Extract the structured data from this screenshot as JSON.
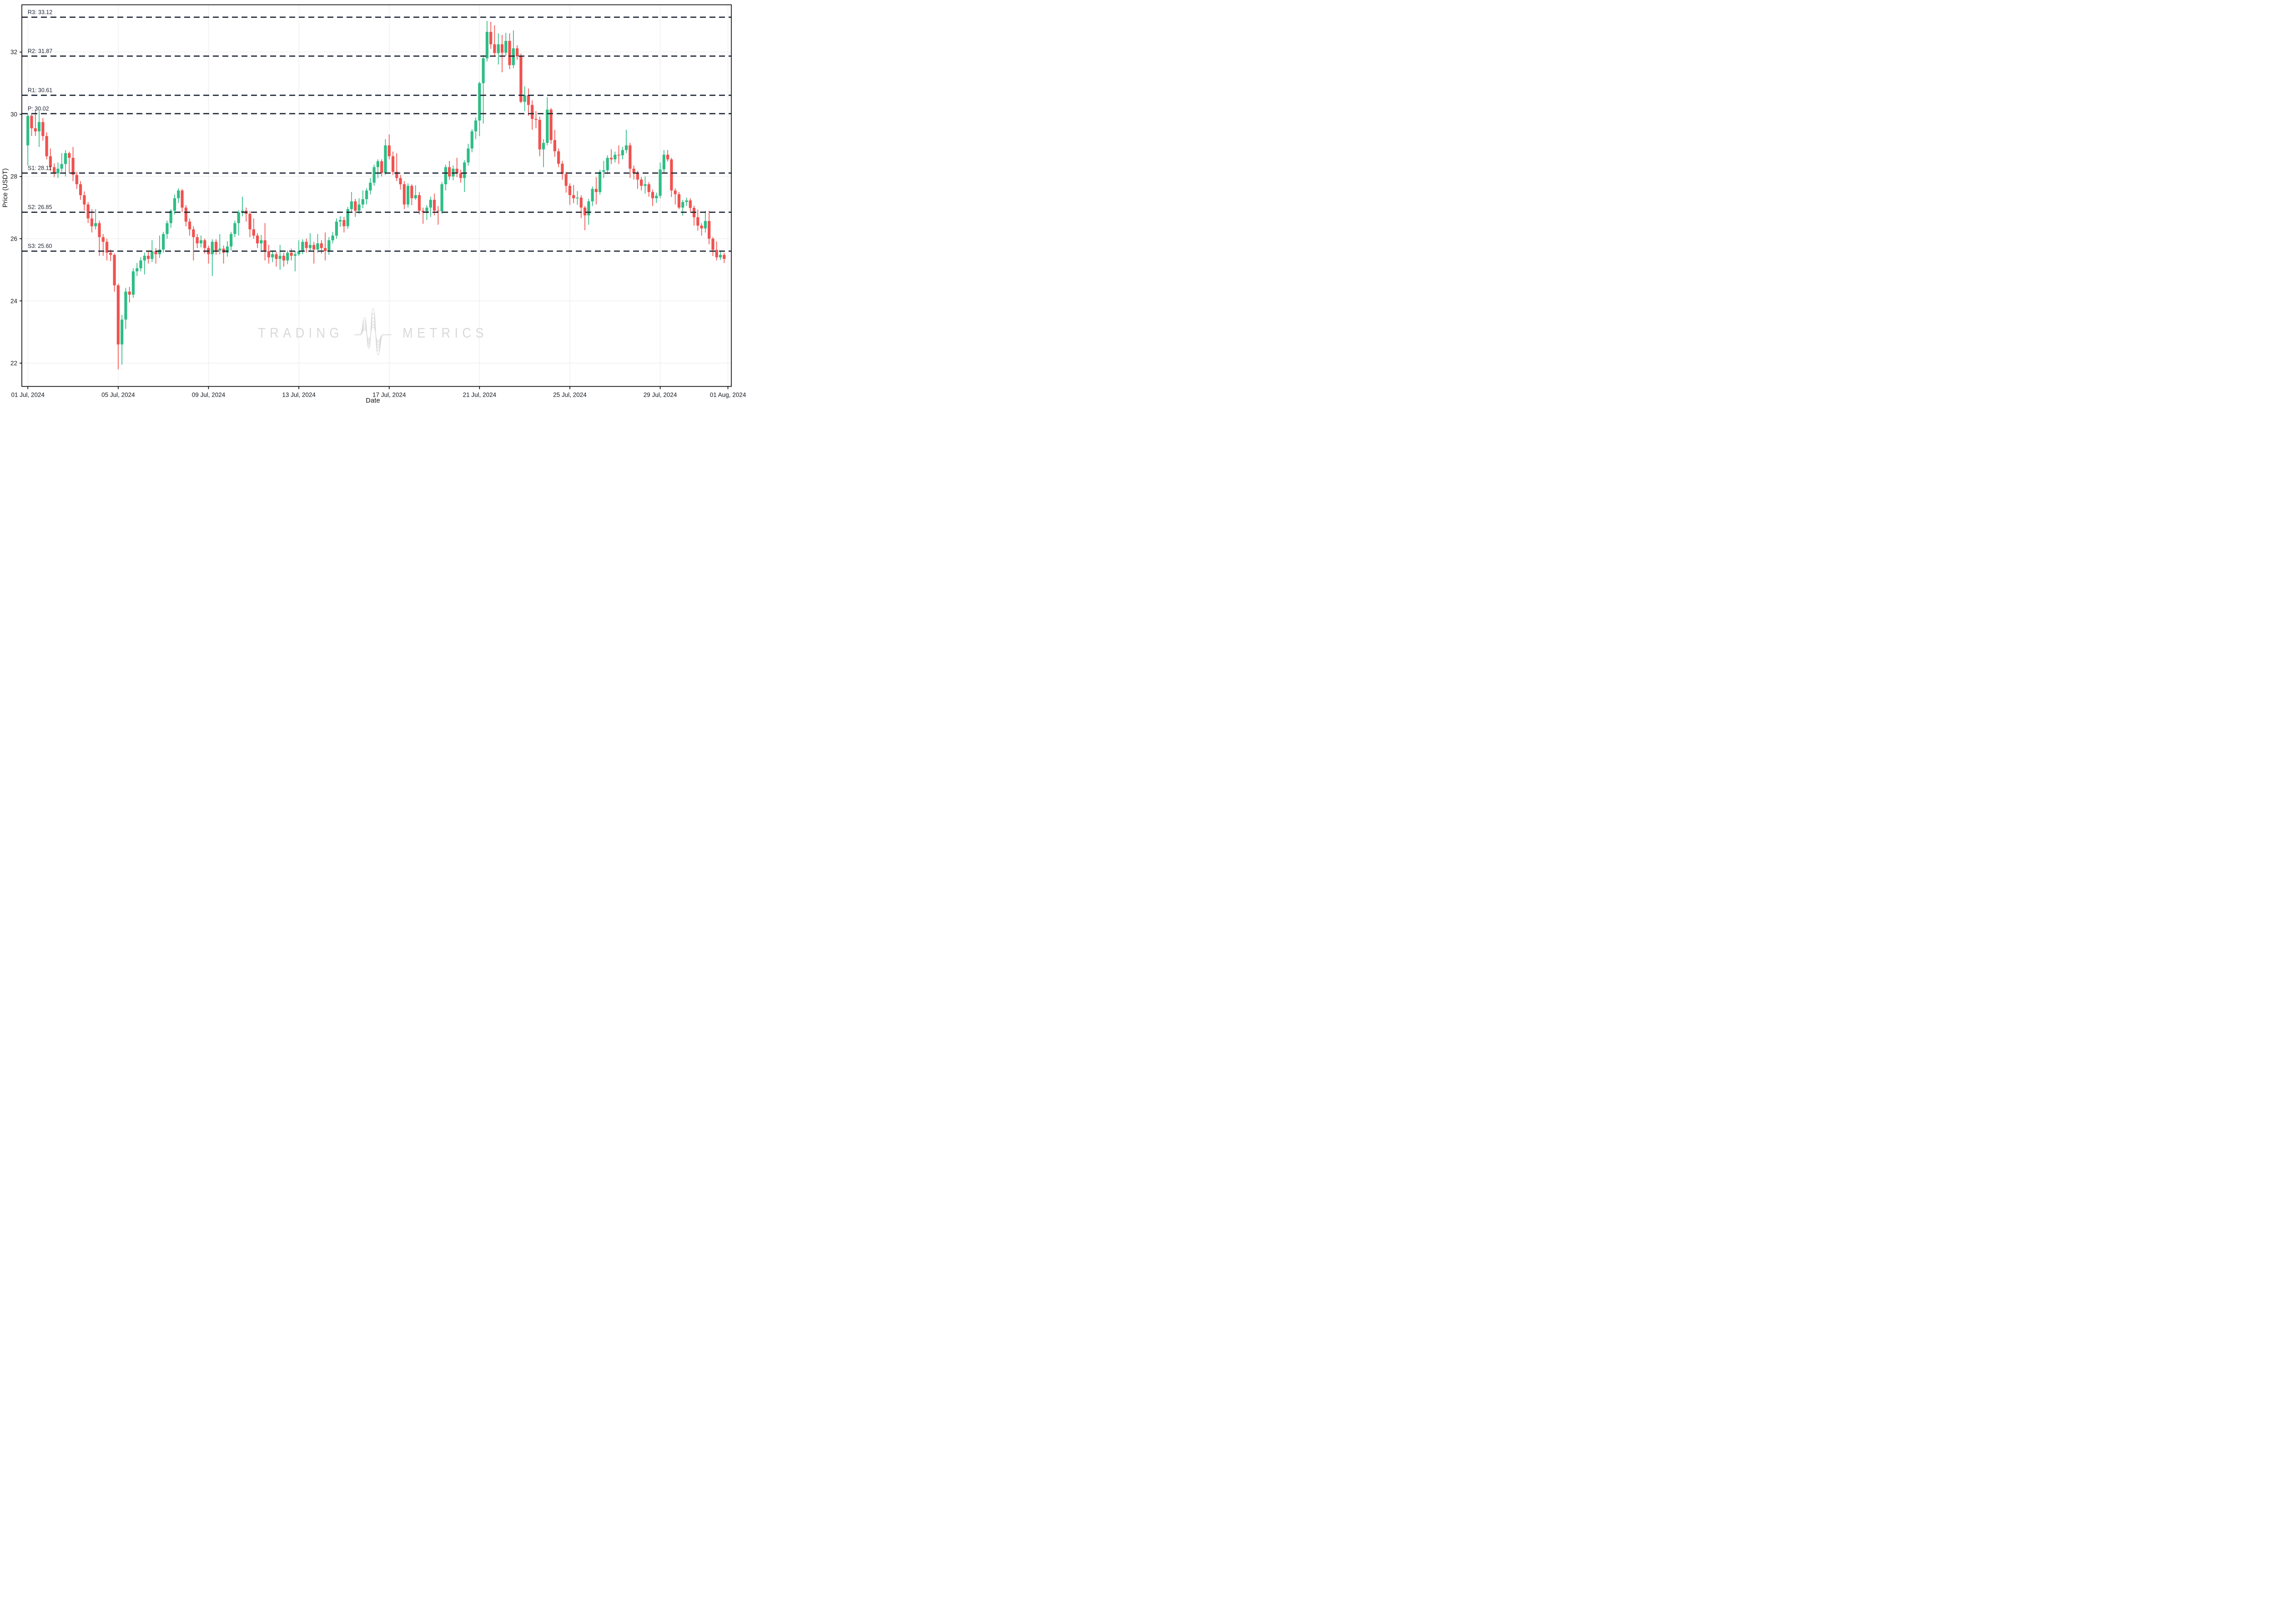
{
  "chart_data": {
    "type": "candlestick",
    "title": "",
    "xlabel": "Date",
    "ylabel": "Price (USDT)",
    "timeframe": "4h",
    "legend": false,
    "grid": true,
    "ylim": [
      21.25,
      33.52
    ],
    "y_ticks": [
      22,
      24,
      26,
      28,
      30,
      32
    ],
    "x_tick_labels": [
      "01 Jul, 2024",
      "05 Jul, 2024",
      "09 Jul, 2024",
      "13 Jul, 2024",
      "17 Jul, 2024",
      "21 Jul, 2024",
      "25 Jul, 2024",
      "29 Jul, 2024",
      "01 Aug, 2024"
    ],
    "x_tick_indices": [
      0,
      24,
      48,
      72,
      96,
      120,
      144,
      168,
      186
    ],
    "pivot_levels": [
      {
        "id": "r3",
        "label": "R3: 33.12",
        "value": 33.12
      },
      {
        "id": "r2",
        "label": "R2: 31.87",
        "value": 31.87
      },
      {
        "id": "r1",
        "label": "R1: 30.61",
        "value": 30.61
      },
      {
        "id": "p",
        "label": "P: 30.02",
        "value": 30.02
      },
      {
        "id": "s1",
        "label": "S1: 28.11",
        "value": 28.11
      },
      {
        "id": "s2",
        "label": "S2: 26.85",
        "value": 26.85
      },
      {
        "id": "s3",
        "label": "S3: 25.60",
        "value": 25.6
      }
    ],
    "watermark": {
      "left": "TRADING",
      "right": "METRICS",
      "icon": "pulse-waveform-icon"
    },
    "colors": {
      "up": "#2EBD85",
      "down": "#F0524F",
      "pivot_line": "#1C2433",
      "pivot_text": "#1C2433",
      "grid": "#F0F0F0",
      "spine": "#000000",
      "tick_text": "#15181E",
      "watermark": "#D9D9D9",
      "background": "#FFFFFF"
    },
    "candles": [
      [
        29.0,
        30.0,
        28.35,
        29.95
      ],
      [
        29.95,
        30.0,
        29.3,
        29.55
      ],
      [
        29.55,
        30.15,
        29.3,
        29.45
      ],
      [
        29.45,
        30.1,
        28.95,
        29.75
      ],
      [
        29.75,
        29.88,
        29.15,
        29.3
      ],
      [
        29.3,
        29.42,
        28.55,
        28.65
      ],
      [
        28.65,
        28.9,
        28.18,
        28.3
      ],
      [
        28.3,
        28.42,
        27.98,
        28.1
      ],
      [
        28.1,
        28.45,
        27.95,
        28.25
      ],
      [
        28.25,
        28.75,
        28.15,
        28.4
      ],
      [
        28.4,
        28.85,
        28.0,
        28.75
      ],
      [
        28.75,
        28.8,
        28.1,
        28.6
      ],
      [
        28.6,
        28.95,
        27.85,
        28.05
      ],
      [
        28.05,
        28.15,
        27.6,
        27.75
      ],
      [
        27.75,
        27.85,
        27.25,
        27.4
      ],
      [
        27.4,
        27.52,
        26.9,
        27.1
      ],
      [
        27.1,
        27.18,
        26.5,
        26.65
      ],
      [
        26.65,
        26.95,
        26.2,
        26.4
      ],
      [
        26.4,
        26.95,
        26.3,
        26.5
      ],
      [
        26.5,
        26.58,
        25.45,
        26.05
      ],
      [
        26.05,
        26.15,
        25.45,
        25.9
      ],
      [
        25.9,
        26.0,
        25.3,
        25.55
      ],
      [
        25.55,
        25.65,
        25.28,
        25.48
      ],
      [
        25.48,
        25.52,
        24.3,
        24.5
      ],
      [
        24.5,
        24.55,
        21.8,
        22.6
      ],
      [
        22.6,
        23.55,
        21.95,
        23.4
      ],
      [
        23.4,
        24.42,
        23.1,
        24.3
      ],
      [
        24.3,
        24.45,
        23.95,
        24.2
      ],
      [
        24.2,
        25.05,
        24.1,
        24.95
      ],
      [
        24.95,
        25.22,
        24.8,
        25.05
      ],
      [
        25.05,
        25.4,
        24.95,
        25.3
      ],
      [
        25.3,
        25.55,
        24.85,
        25.45
      ],
      [
        25.45,
        25.6,
        25.2,
        25.35
      ],
      [
        25.35,
        25.95,
        25.25,
        25.6
      ],
      [
        25.6,
        25.7,
        25.2,
        25.5
      ],
      [
        25.5,
        26.1,
        25.38,
        25.65
      ],
      [
        25.65,
        26.22,
        25.55,
        26.15
      ],
      [
        26.15,
        26.58,
        26.0,
        26.5
      ],
      [
        26.5,
        26.95,
        26.35,
        26.9
      ],
      [
        26.9,
        27.42,
        26.78,
        27.3
      ],
      [
        27.3,
        27.62,
        27.15,
        27.55
      ],
      [
        27.55,
        27.6,
        26.85,
        27.0
      ],
      [
        27.0,
        27.08,
        26.4,
        26.55
      ],
      [
        26.55,
        26.65,
        26.1,
        26.3
      ],
      [
        26.3,
        26.4,
        25.3,
        26.05
      ],
      [
        26.05,
        26.15,
        25.7,
        25.85
      ],
      [
        25.85,
        26.1,
        25.72,
        25.95
      ],
      [
        25.95,
        26.0,
        25.52,
        25.7
      ],
      [
        25.7,
        25.78,
        25.2,
        25.5
      ],
      [
        25.5,
        25.98,
        24.8,
        25.9
      ],
      [
        25.9,
        25.98,
        25.48,
        25.62
      ],
      [
        25.62,
        26.15,
        25.5,
        25.68
      ],
      [
        25.68,
        25.78,
        25.2,
        25.55
      ],
      [
        25.55,
        25.92,
        25.42,
        25.75
      ],
      [
        25.75,
        26.22,
        25.62,
        26.15
      ],
      [
        26.15,
        26.58,
        26.05,
        26.5
      ],
      [
        26.5,
        26.92,
        26.1,
        26.85
      ],
      [
        26.85,
        27.35,
        26.72,
        26.9
      ],
      [
        26.9,
        27.0,
        26.55,
        26.8
      ],
      [
        26.8,
        26.88,
        26.05,
        26.3
      ],
      [
        26.3,
        26.65,
        26.0,
        26.1
      ],
      [
        26.1,
        26.18,
        25.7,
        25.85
      ],
      [
        25.85,
        26.12,
        25.6,
        25.95
      ],
      [
        25.95,
        26.5,
        25.3,
        25.6
      ],
      [
        25.6,
        25.8,
        25.2,
        25.4
      ],
      [
        25.4,
        25.62,
        25.25,
        25.5
      ],
      [
        25.5,
        25.58,
        25.1,
        25.35
      ],
      [
        25.35,
        25.8,
        25.0,
        25.45
      ],
      [
        25.45,
        25.55,
        25.1,
        25.3
      ],
      [
        25.3,
        25.62,
        25.18,
        25.55
      ],
      [
        25.55,
        25.68,
        25.3,
        25.45
      ],
      [
        25.45,
        25.6,
        24.95,
        25.5
      ],
      [
        25.5,
        25.95,
        25.45,
        25.6
      ],
      [
        25.6,
        25.98,
        25.5,
        25.9
      ],
      [
        25.9,
        26.0,
        25.55,
        25.7
      ],
      [
        25.7,
        26.18,
        25.6,
        25.8
      ],
      [
        25.8,
        25.9,
        25.2,
        25.65
      ],
      [
        25.65,
        26.15,
        25.55,
        25.85
      ],
      [
        25.85,
        25.95,
        25.52,
        25.7
      ],
      [
        25.7,
        26.2,
        25.3,
        25.6
      ],
      [
        25.6,
        26.05,
        25.48,
        25.95
      ],
      [
        25.95,
        26.22,
        25.85,
        26.1
      ],
      [
        26.1,
        26.65,
        26.0,
        26.55
      ],
      [
        26.55,
        26.72,
        26.38,
        26.6
      ],
      [
        26.6,
        26.7,
        26.2,
        26.4
      ],
      [
        26.4,
        27.02,
        26.32,
        26.95
      ],
      [
        26.95,
        27.5,
        26.85,
        27.2
      ],
      [
        27.2,
        27.28,
        26.7,
        26.9
      ],
      [
        26.9,
        27.3,
        26.8,
        27.1
      ],
      [
        27.1,
        27.55,
        26.98,
        27.27
      ],
      [
        27.27,
        27.62,
        27.1,
        27.55
      ],
      [
        27.55,
        27.95,
        27.42,
        27.8
      ],
      [
        27.8,
        28.38,
        27.7,
        28.3
      ],
      [
        28.3,
        28.55,
        27.95,
        28.49
      ],
      [
        28.49,
        28.55,
        28.0,
        28.11
      ],
      [
        28.11,
        29.2,
        28.05,
        29.0
      ],
      [
        29.0,
        29.35,
        28.55,
        28.65
      ],
      [
        28.65,
        28.8,
        28.05,
        28.15
      ],
      [
        28.15,
        28.75,
        27.85,
        27.95
      ],
      [
        27.95,
        28.05,
        27.58,
        27.75
      ],
      [
        27.75,
        27.85,
        26.95,
        27.1
      ],
      [
        27.1,
        27.78,
        27.0,
        27.7
      ],
      [
        27.7,
        27.75,
        27.08,
        27.3
      ],
      [
        27.3,
        27.72,
        27.25,
        27.4
      ],
      [
        27.4,
        27.5,
        26.78,
        26.9
      ],
      [
        26.9,
        27.0,
        26.48,
        26.85
      ],
      [
        26.85,
        27.08,
        26.6,
        27.0
      ],
      [
        27.0,
        27.35,
        26.7,
        27.25
      ],
      [
        27.25,
        27.45,
        26.75,
        26.9
      ],
      [
        26.9,
        27.05,
        26.45,
        26.88
      ],
      [
        26.88,
        27.82,
        26.8,
        27.75
      ],
      [
        27.75,
        28.38,
        27.55,
        28.3
      ],
      [
        28.3,
        28.5,
        27.9,
        28.0
      ],
      [
        28.0,
        28.35,
        27.88,
        28.25
      ],
      [
        28.25,
        28.6,
        27.98,
        28.1
      ],
      [
        28.1,
        28.22,
        27.8,
        27.95
      ],
      [
        27.95,
        28.52,
        27.5,
        28.45
      ],
      [
        28.45,
        29.05,
        28.35,
        28.9
      ],
      [
        28.9,
        29.52,
        28.78,
        29.45
      ],
      [
        29.45,
        29.9,
        29.2,
        29.8
      ],
      [
        29.8,
        31.05,
        29.3,
        31.0
      ],
      [
        31.0,
        31.9,
        29.7,
        31.8
      ],
      [
        31.8,
        33.0,
        31.7,
        32.65
      ],
      [
        32.65,
        32.97,
        32.1,
        32.25
      ],
      [
        32.25,
        32.86,
        31.85,
        31.97
      ],
      [
        31.97,
        32.6,
        31.6,
        32.25
      ],
      [
        32.25,
        32.55,
        31.35,
        31.98
      ],
      [
        31.98,
        32.62,
        31.88,
        32.36
      ],
      [
        32.36,
        32.6,
        31.45,
        31.58
      ],
      [
        31.58,
        32.7,
        31.48,
        32.12
      ],
      [
        32.12,
        32.22,
        31.75,
        31.86
      ],
      [
        31.86,
        31.95,
        30.36,
        30.4
      ],
      [
        30.4,
        30.9,
        30.1,
        30.61
      ],
      [
        30.61,
        30.83,
        29.95,
        30.3
      ],
      [
        30.3,
        30.45,
        29.5,
        29.85
      ],
      [
        29.85,
        30.1,
        29.55,
        29.82
      ],
      [
        29.82,
        29.93,
        28.65,
        28.87
      ],
      [
        28.87,
        29.2,
        28.3,
        29.08
      ],
      [
        29.08,
        30.55,
        29.0,
        30.15
      ],
      [
        30.15,
        30.2,
        29.05,
        29.17
      ],
      [
        29.17,
        29.5,
        28.63,
        28.81
      ],
      [
        28.81,
        28.9,
        28.3,
        28.41
      ],
      [
        28.41,
        28.5,
        27.9,
        28.08
      ],
      [
        28.08,
        28.15,
        27.48,
        27.7
      ],
      [
        27.7,
        27.78,
        27.09,
        27.4
      ],
      [
        27.4,
        27.73,
        27.14,
        27.3
      ],
      [
        27.3,
        27.53,
        27.09,
        27.32
      ],
      [
        27.32,
        27.4,
        26.66,
        27.0
      ],
      [
        27.0,
        27.05,
        26.27,
        26.75
      ],
      [
        26.75,
        27.28,
        26.45,
        27.2
      ],
      [
        27.2,
        27.68,
        27.05,
        27.6
      ],
      [
        27.6,
        27.98,
        27.1,
        27.5
      ],
      [
        27.5,
        28.22,
        27.42,
        28.15
      ],
      [
        28.15,
        28.5,
        27.95,
        28.2
      ],
      [
        28.2,
        28.68,
        28.08,
        28.6
      ],
      [
        28.6,
        28.88,
        28.4,
        28.55
      ],
      [
        28.55,
        28.8,
        28.45,
        28.7
      ],
      [
        28.7,
        29.0,
        28.4,
        28.68
      ],
      [
        28.68,
        28.95,
        28.55,
        28.85
      ],
      [
        28.85,
        29.5,
        28.75,
        29.0
      ],
      [
        29.0,
        29.08,
        27.95,
        28.25
      ],
      [
        28.25,
        28.35,
        27.9,
        28.1
      ],
      [
        28.1,
        28.18,
        27.6,
        27.9
      ],
      [
        27.9,
        27.98,
        27.55,
        27.7
      ],
      [
        27.7,
        28.0,
        27.45,
        27.75
      ],
      [
        27.75,
        27.82,
        27.35,
        27.5
      ],
      [
        27.5,
        27.58,
        27.05,
        27.3
      ],
      [
        27.3,
        27.48,
        27.15,
        27.38
      ],
      [
        27.38,
        28.45,
        27.3,
        28.23
      ],
      [
        28.23,
        28.85,
        28.1,
        28.7
      ],
      [
        28.7,
        28.85,
        28.48,
        28.55
      ],
      [
        28.55,
        28.6,
        27.34,
        27.55
      ],
      [
        27.55,
        27.62,
        27.1,
        27.43
      ],
      [
        27.43,
        27.5,
        26.95,
        27.0
      ],
      [
        27.0,
        27.25,
        26.74,
        27.18
      ],
      [
        27.18,
        27.32,
        27.05,
        27.23
      ],
      [
        27.23,
        27.3,
        26.87,
        26.99
      ],
      [
        26.99,
        27.06,
        26.42,
        26.69
      ],
      [
        26.69,
        26.93,
        26.26,
        26.42
      ],
      [
        26.42,
        26.5,
        26.1,
        26.33
      ],
      [
        26.33,
        26.9,
        26.2,
        26.57
      ],
      [
        26.57,
        26.9,
        25.82,
        26.0
      ],
      [
        26.0,
        26.05,
        25.44,
        25.64
      ],
      [
        25.64,
        25.91,
        25.3,
        25.4
      ],
      [
        25.4,
        25.6,
        25.32,
        25.48
      ],
      [
        25.48,
        25.55,
        25.22,
        25.35
      ]
    ]
  }
}
